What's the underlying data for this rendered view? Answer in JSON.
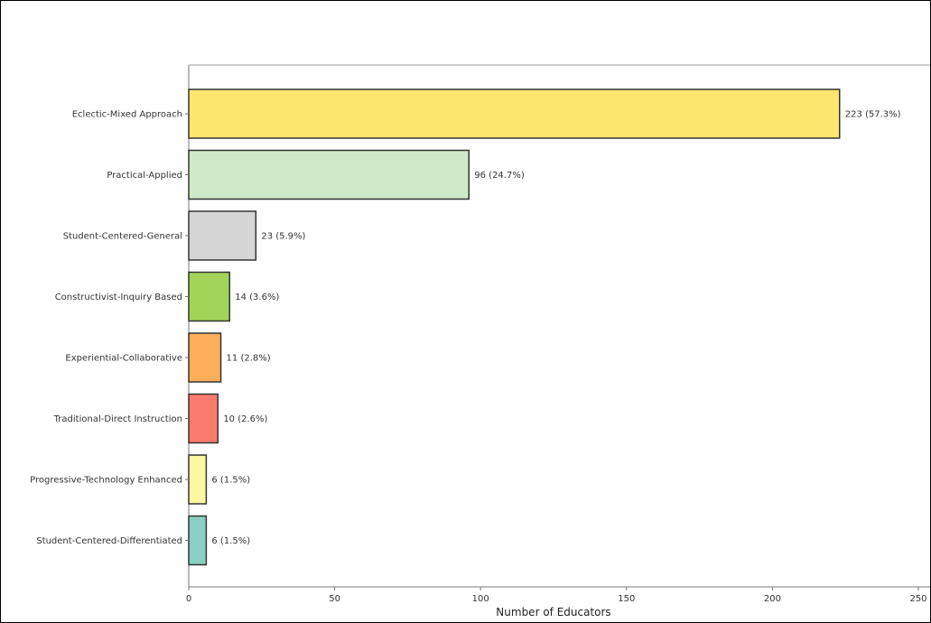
{
  "chart_data": {
    "type": "bar",
    "orientation": "horizontal",
    "title": "",
    "xlabel": "Number of Educators",
    "ylabel": "",
    "xlim": [
      0,
      250
    ],
    "xticks": [
      0,
      50,
      100,
      150,
      200,
      250
    ],
    "grid": false,
    "legend": "none",
    "categories": [
      "Eclectic-Mixed Approach",
      "Practical-Applied",
      "Student-Centered-General",
      "Constructivist-Inquiry Based",
      "Experiential-Collaborative",
      "Traditional-Direct Instruction",
      "Progressive-Technology Enhanced",
      "Student-Centered-Differentiated"
    ],
    "values": [
      223,
      96,
      23,
      14,
      11,
      10,
      6,
      6
    ],
    "data_labels": [
      "223 (57.3%)",
      "96 (24.7%)",
      "23 (5.9%)",
      "14 (3.6%)",
      "11 (2.8%)",
      "10 (2.6%)",
      "6 (1.5%)",
      "6 (1.5%)"
    ],
    "colors": [
      "#fde66e",
      "#cfe8c6",
      "#d6d6d6",
      "#a3d45a",
      "#fdae5b",
      "#fb7a6e",
      "#fdf7a3",
      "#8acfc3"
    ],
    "edge_color": "#333333"
  }
}
